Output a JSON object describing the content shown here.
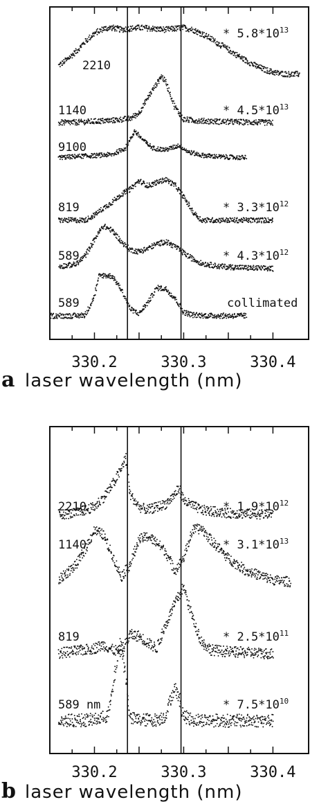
{
  "chart_data": [
    {
      "panel": "a",
      "type": "scatter",
      "xlabel": "laser wavelength (nm)",
      "xlim": [
        330.15,
        330.44
      ],
      "xticks": [
        330.2,
        330.3,
        330.4
      ],
      "tick_labels": [
        "330.2",
        "330.3",
        "330.4"
      ],
      "vlines": [
        330.237,
        330.297
      ],
      "series": [
        {
          "label": "2210",
          "annotation": {
            "prefix": "* 5.8*10",
            "exp": "13"
          },
          "x": [
            330.16,
            330.17,
            330.18,
            330.19,
            330.2,
            330.21,
            330.22,
            330.23,
            330.24,
            330.25,
            330.26,
            330.27,
            330.28,
            330.29,
            330.3,
            330.31,
            330.32,
            330.33,
            330.34,
            330.35,
            330.36,
            330.37,
            330.38,
            330.39,
            330.4,
            330.41,
            330.42,
            330.43
          ],
          "y": [
            0.22,
            0.35,
            0.52,
            0.72,
            0.88,
            0.98,
            1.0,
            0.96,
            0.98,
            1.0,
            0.99,
            0.97,
            0.96,
            0.98,
            1.0,
            0.96,
            0.88,
            0.78,
            0.66,
            0.55,
            0.43,
            0.32,
            0.22,
            0.14,
            0.08,
            0.05,
            0.04,
            0.04
          ]
        },
        {
          "label": "1140",
          "annotation": {
            "prefix": "* 4.5*10",
            "exp": "13"
          },
          "x": [
            330.16,
            330.18,
            330.2,
            330.22,
            330.24,
            330.25,
            330.26,
            330.27,
            330.275,
            330.28,
            330.29,
            330.3,
            330.32,
            330.35,
            330.38,
            330.4
          ],
          "y": [
            0.01,
            0.02,
            0.04,
            0.06,
            0.1,
            0.22,
            0.55,
            0.85,
            1.0,
            0.88,
            0.35,
            0.08,
            0.05,
            0.03,
            0.02,
            0.01
          ]
        },
        {
          "label": "9100",
          "x": [
            330.16,
            330.18,
            330.2,
            330.22,
            330.235,
            330.245,
            330.255,
            330.265,
            330.28,
            330.295,
            330.305,
            330.32,
            330.34,
            330.36,
            330.37
          ],
          "y": [
            0.3,
            0.33,
            0.35,
            0.38,
            0.55,
            1.0,
            0.75,
            0.55,
            0.5,
            0.62,
            0.45,
            0.36,
            0.32,
            0.3,
            0.3
          ]
        },
        {
          "label": "819",
          "annotation": {
            "prefix": "* 3.3*10",
            "exp": "12"
          },
          "x": [
            330.16,
            330.19,
            330.2,
            330.21,
            330.22,
            330.23,
            330.24,
            330.25,
            330.26,
            330.27,
            330.28,
            330.29,
            330.3,
            330.31,
            330.32,
            330.35,
            330.4
          ],
          "y": [
            0.0,
            0.0,
            0.12,
            0.28,
            0.42,
            0.6,
            0.72,
            0.92,
            0.8,
            0.88,
            0.95,
            0.82,
            0.55,
            0.2,
            0.0,
            0.0,
            0.0
          ]
        },
        {
          "label": "589",
          "annotation": {
            "prefix": "* 4.3*10",
            "exp": "12"
          },
          "x": [
            330.16,
            330.18,
            330.19,
            330.2,
            330.21,
            330.22,
            330.23,
            330.24,
            330.25,
            330.26,
            330.27,
            330.28,
            330.29,
            330.3,
            330.31,
            330.32,
            330.34,
            330.37,
            330.4
          ],
          "y": [
            0.05,
            0.1,
            0.3,
            0.65,
            0.95,
            0.85,
            0.6,
            0.42,
            0.38,
            0.45,
            0.55,
            0.6,
            0.5,
            0.35,
            0.22,
            0.12,
            0.05,
            0.02,
            0.0
          ]
        },
        {
          "label": "589",
          "annotation": {
            "prefix": "collimated"
          },
          "x": [
            330.15,
            330.18,
            330.19,
            330.2,
            330.205,
            330.21,
            330.22,
            330.23,
            330.24,
            330.25,
            330.26,
            330.27,
            330.28,
            330.29,
            330.3,
            330.31,
            330.33,
            330.37
          ],
          "y": [
            0.0,
            0.0,
            0.02,
            0.45,
            0.88,
            0.9,
            0.88,
            0.6,
            0.15,
            0.05,
            0.3,
            0.62,
            0.6,
            0.4,
            0.08,
            0.02,
            0.0,
            0.0
          ]
        }
      ]
    },
    {
      "panel": "b",
      "type": "scatter",
      "xlabel": "laser wavelength (nm)",
      "xlim": [
        330.15,
        330.44
      ],
      "xticks": [
        330.2,
        330.3,
        330.4
      ],
      "tick_labels": [
        "330.2",
        "330.3",
        "330.4"
      ],
      "vlines": [
        330.237,
        330.297
      ],
      "series": [
        {
          "label": "2210",
          "annotation": {
            "prefix": "* 1.9*10",
            "exp": "12"
          },
          "x": [
            330.16,
            330.18,
            330.2,
            330.21,
            330.22,
            330.23,
            330.235,
            330.24,
            330.25,
            330.26,
            330.27,
            330.28,
            330.29,
            330.295,
            330.3,
            330.32,
            330.35,
            330.4
          ],
          "y": [
            0.08,
            0.1,
            0.2,
            0.35,
            0.55,
            0.8,
            1.0,
            0.4,
            0.2,
            0.15,
            0.2,
            0.25,
            0.4,
            0.5,
            0.3,
            0.15,
            0.1,
            0.08
          ]
        },
        {
          "label": "1140",
          "annotation": {
            "prefix": "* 3.1*10",
            "exp": "13"
          },
          "x": [
            330.16,
            330.18,
            330.19,
            330.2,
            330.21,
            330.22,
            330.23,
            330.24,
            330.25,
            330.26,
            330.27,
            330.28,
            330.29,
            330.3,
            330.31,
            330.32,
            330.33,
            330.35,
            330.37,
            330.4,
            330.42
          ],
          "y": [
            0.05,
            0.3,
            0.55,
            0.85,
            0.78,
            0.45,
            0.1,
            0.3,
            0.7,
            0.75,
            0.65,
            0.5,
            0.2,
            0.4,
            0.85,
            0.88,
            0.7,
            0.4,
            0.2,
            0.05,
            0.02
          ]
        },
        {
          "label": "819",
          "annotation": {
            "prefix": "* 2.5*10",
            "exp": "11"
          },
          "x": [
            330.16,
            330.18,
            330.2,
            330.21,
            330.22,
            330.23,
            330.24,
            330.25,
            330.26,
            330.27,
            330.28,
            330.29,
            330.3,
            330.31,
            330.32,
            330.33,
            330.35,
            330.4
          ],
          "y": [
            0.03,
            0.06,
            0.1,
            0.15,
            0.08,
            0.05,
            0.3,
            0.28,
            0.18,
            0.1,
            0.45,
            0.75,
            1.0,
            0.55,
            0.2,
            0.08,
            0.05,
            0.02
          ]
        },
        {
          "label": "589 nm",
          "annotation": {
            "prefix": "* 7.5*10",
            "exp": "10"
          },
          "x": [
            330.16,
            330.2,
            330.215,
            330.22,
            330.225,
            330.23,
            330.235,
            330.24,
            330.25,
            330.27,
            330.28,
            330.285,
            330.29,
            330.295,
            330.3,
            330.31,
            330.35,
            330.4
          ],
          "y": [
            0.02,
            0.03,
            0.08,
            0.35,
            0.75,
            1.0,
            0.55,
            0.05,
            0.03,
            0.03,
            0.08,
            0.28,
            0.42,
            0.3,
            0.08,
            0.03,
            0.02,
            0.02
          ]
        }
      ]
    }
  ]
}
